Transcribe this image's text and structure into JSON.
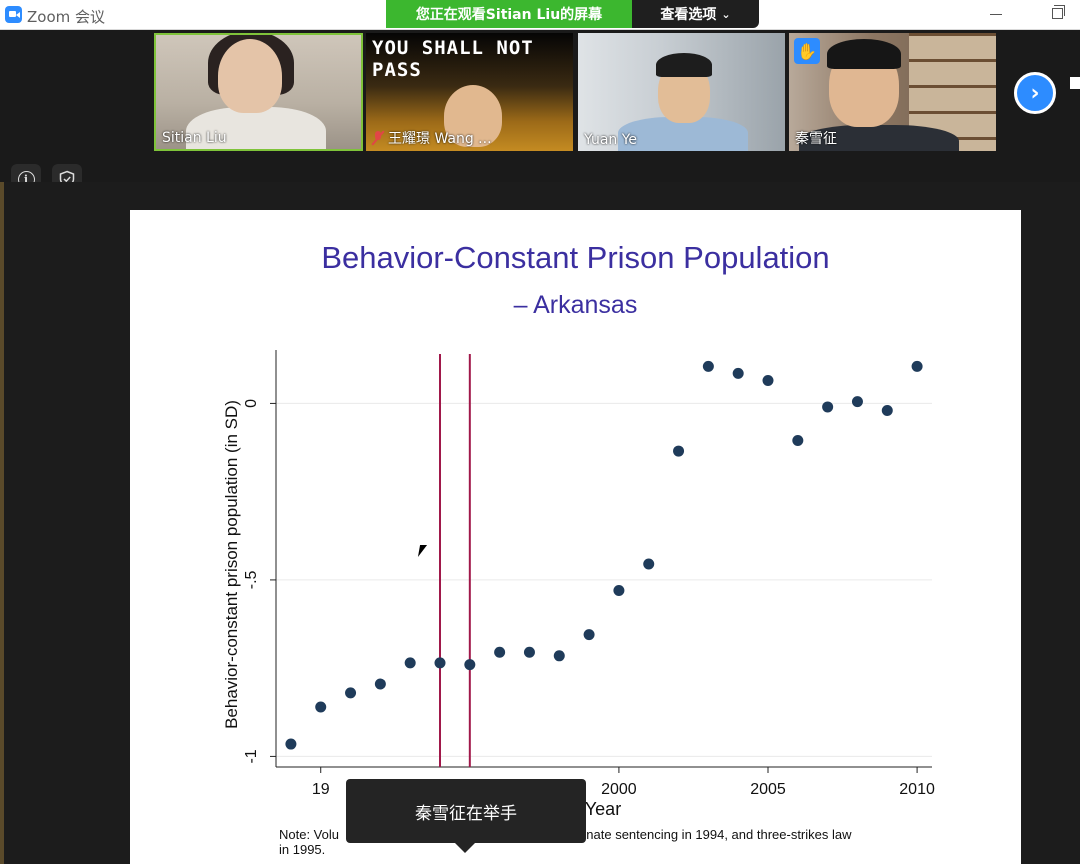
{
  "titlebar": {
    "app_title": "Zoom 会议",
    "share_banner": "您正在观看Sitian  Liu的屏幕",
    "view_options": "查看选项",
    "view_options_icon": "chevron-down-icon"
  },
  "participants": [
    {
      "name": "Sitian Liu",
      "active_speaker": true
    },
    {
      "name": "王耀璟 Wang ...",
      "muted": true,
      "banner_text": "YOU SHALL NOT PASS"
    },
    {
      "name": "Yuan Ye"
    },
    {
      "name": "秦雪征",
      "hand_raised": true
    }
  ],
  "controls": {
    "info_icon": "info-icon",
    "shield_icon": "shield-check-icon",
    "next_icon": "chevron-right-icon"
  },
  "slide": {
    "title": "Behavior-Constant Prison Population",
    "subtitle": "– Arkansas",
    "note_left": "Note: Volu",
    "note_right": "erminate sentencing in 1994, and three-strikes law",
    "note_line2": "in 1995."
  },
  "chart_data": {
    "type": "scatter",
    "xlabel": "Year",
    "ylabel": "Behavior-constant prison population (in SD)",
    "xlim": [
      1988.5,
      2010.5
    ],
    "ylim": [
      -1.03,
      0.14
    ],
    "x_ticks": [
      "19",
      "2000",
      "2005",
      "2010"
    ],
    "x_tick_values": [
      1990,
      2000,
      2005,
      2010
    ],
    "y_ticks": [
      "0",
      "-.5",
      "-1"
    ],
    "y_tick_values": [
      0,
      -0.5,
      -1
    ],
    "vlines": [
      1994,
      1995
    ],
    "vline_color": "#a0184a",
    "point_color": "#1f3b5a",
    "points": [
      {
        "x": 1989,
        "y": -0.965
      },
      {
        "x": 1990,
        "y": -0.86
      },
      {
        "x": 1991,
        "y": -0.82
      },
      {
        "x": 1992,
        "y": -0.795
      },
      {
        "x": 1993,
        "y": -0.735
      },
      {
        "x": 1994,
        "y": -0.735
      },
      {
        "x": 1995,
        "y": -0.74
      },
      {
        "x": 1996,
        "y": -0.705
      },
      {
        "x": 1997,
        "y": -0.705
      },
      {
        "x": 1998,
        "y": -0.715
      },
      {
        "x": 1999,
        "y": -0.655
      },
      {
        "x": 2000,
        "y": -0.53
      },
      {
        "x": 2001,
        "y": -0.455
      },
      {
        "x": 2002,
        "y": -0.135
      },
      {
        "x": 2003,
        "y": 0.105
      },
      {
        "x": 2004,
        "y": 0.085
      },
      {
        "x": 2005,
        "y": 0.065
      },
      {
        "x": 2006,
        "y": -0.105
      },
      {
        "x": 2007,
        "y": -0.01
      },
      {
        "x": 2008,
        "y": 0.005
      },
      {
        "x": 2009,
        "y": -0.02
      },
      {
        "x": 2010,
        "y": 0.105
      }
    ]
  },
  "toast": {
    "text": "秦雪征在举手"
  }
}
